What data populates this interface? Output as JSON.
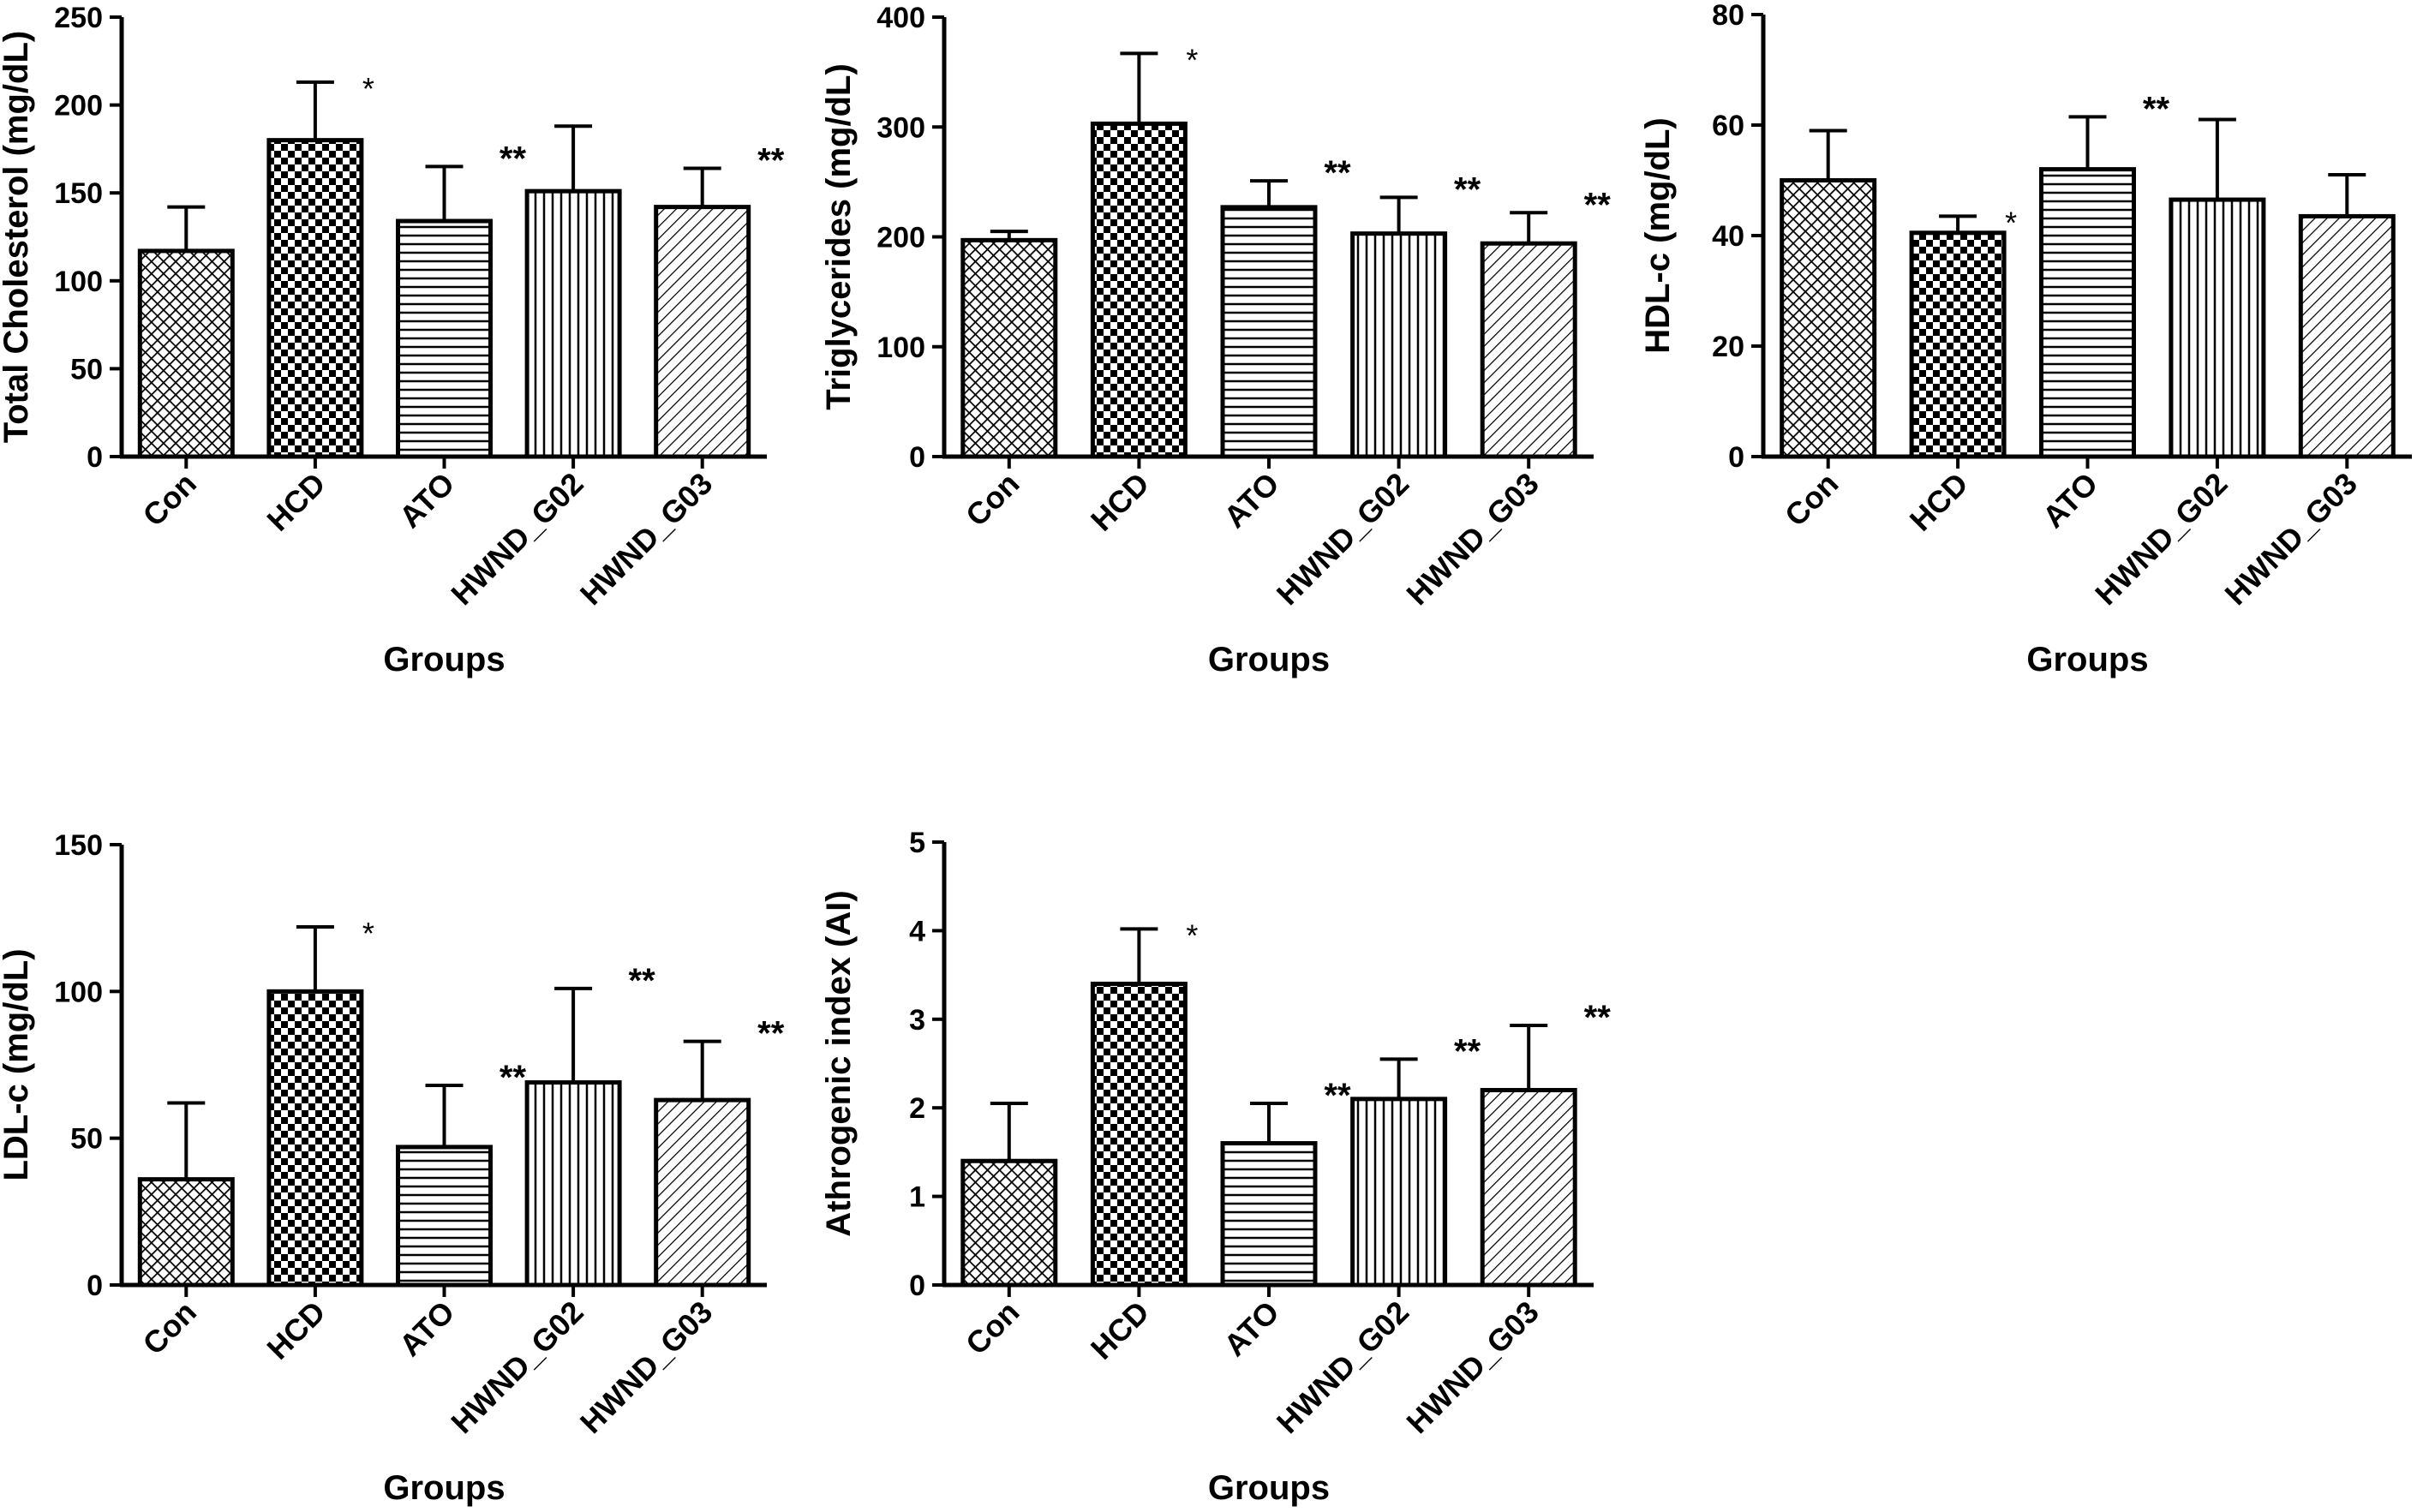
{
  "chart_data": [
    {
      "type": "bar",
      "title": "",
      "xlabel": "Groups",
      "ylabel": "Total Cholesterol (mg/dL)",
      "ylim": [
        0,
        250
      ],
      "yticks": [
        0,
        50,
        100,
        150,
        200,
        250
      ],
      "categories": [
        "Con",
        "HCD",
        "ATO",
        "HWND_G02",
        "HWND_G03"
      ],
      "values": [
        117,
        180,
        134,
        151,
        142
      ],
      "errors": [
        25,
        33,
        31,
        37,
        22
      ],
      "patterns": [
        "crosshatch",
        "checker",
        "hlines",
        "vlines",
        "diag"
      ],
      "significance": [
        "",
        "*",
        "**",
        "",
        "**"
      ]
    },
    {
      "type": "bar",
      "title": "",
      "xlabel": "Groups",
      "ylabel": "Triglycerides (mg/dL)",
      "ylim": [
        0,
        400
      ],
      "yticks": [
        0,
        100,
        200,
        300,
        400
      ],
      "categories": [
        "Con",
        "HCD",
        "ATO",
        "HWND_G02",
        "HWND_G03"
      ],
      "values": [
        197,
        303,
        227,
        203,
        194
      ],
      "errors": [
        8,
        64,
        24,
        33,
        28
      ],
      "patterns": [
        "crosshatch",
        "checker",
        "hlines",
        "vlines",
        "diag"
      ],
      "significance": [
        "",
        "*",
        "**",
        "**",
        "**"
      ]
    },
    {
      "type": "bar",
      "title": "",
      "xlabel": "Groups",
      "ylabel": "HDL-c (mg/dL)",
      "ylim": [
        0,
        80
      ],
      "yticks": [
        0,
        20,
        40,
        60,
        80
      ],
      "categories": [
        "Con",
        "HCD",
        "ATO",
        "HWND_G02",
        "HWND_G03"
      ],
      "values": [
        50,
        40.5,
        52,
        46.5,
        43.5
      ],
      "errors": [
        9,
        3,
        9.5,
        14.5,
        7.5
      ],
      "patterns": [
        "crosshatch",
        "checker",
        "hlines",
        "vlines",
        "diag"
      ],
      "significance": [
        "",
        "*",
        "**",
        "",
        ""
      ]
    },
    {
      "type": "bar",
      "title": "",
      "xlabel": "Groups",
      "ylabel": "LDL-c (mg/dL)",
      "ylim": [
        0,
        150
      ],
      "yticks": [
        0,
        50,
        100,
        150
      ],
      "categories": [
        "Con",
        "HCD",
        "ATO",
        "HWND_G02",
        "HWND_G03"
      ],
      "values": [
        36,
        100,
        47,
        69,
        63
      ],
      "errors": [
        26,
        22,
        21,
        32,
        20
      ],
      "patterns": [
        "crosshatch",
        "checker",
        "hlines",
        "vlines",
        "diag"
      ],
      "significance": [
        "",
        "*",
        "**",
        "**",
        "**"
      ]
    },
    {
      "type": "bar",
      "title": "",
      "xlabel": "Groups",
      "ylabel": "Athrogenic index (AI)",
      "ylim": [
        0,
        5
      ],
      "yticks": [
        0,
        1,
        2,
        3,
        4,
        5
      ],
      "categories": [
        "Con",
        "HCD",
        "ATO",
        "HWND_G02",
        "HWND_G03"
      ],
      "values": [
        1.4,
        3.4,
        1.6,
        2.1,
        2.2
      ],
      "errors": [
        0.65,
        0.62,
        0.45,
        0.45,
        0.73
      ],
      "patterns": [
        "crosshatch",
        "checker",
        "hlines",
        "vlines",
        "diag"
      ],
      "significance": [
        "",
        "*",
        "**",
        "**",
        "**"
      ]
    }
  ]
}
